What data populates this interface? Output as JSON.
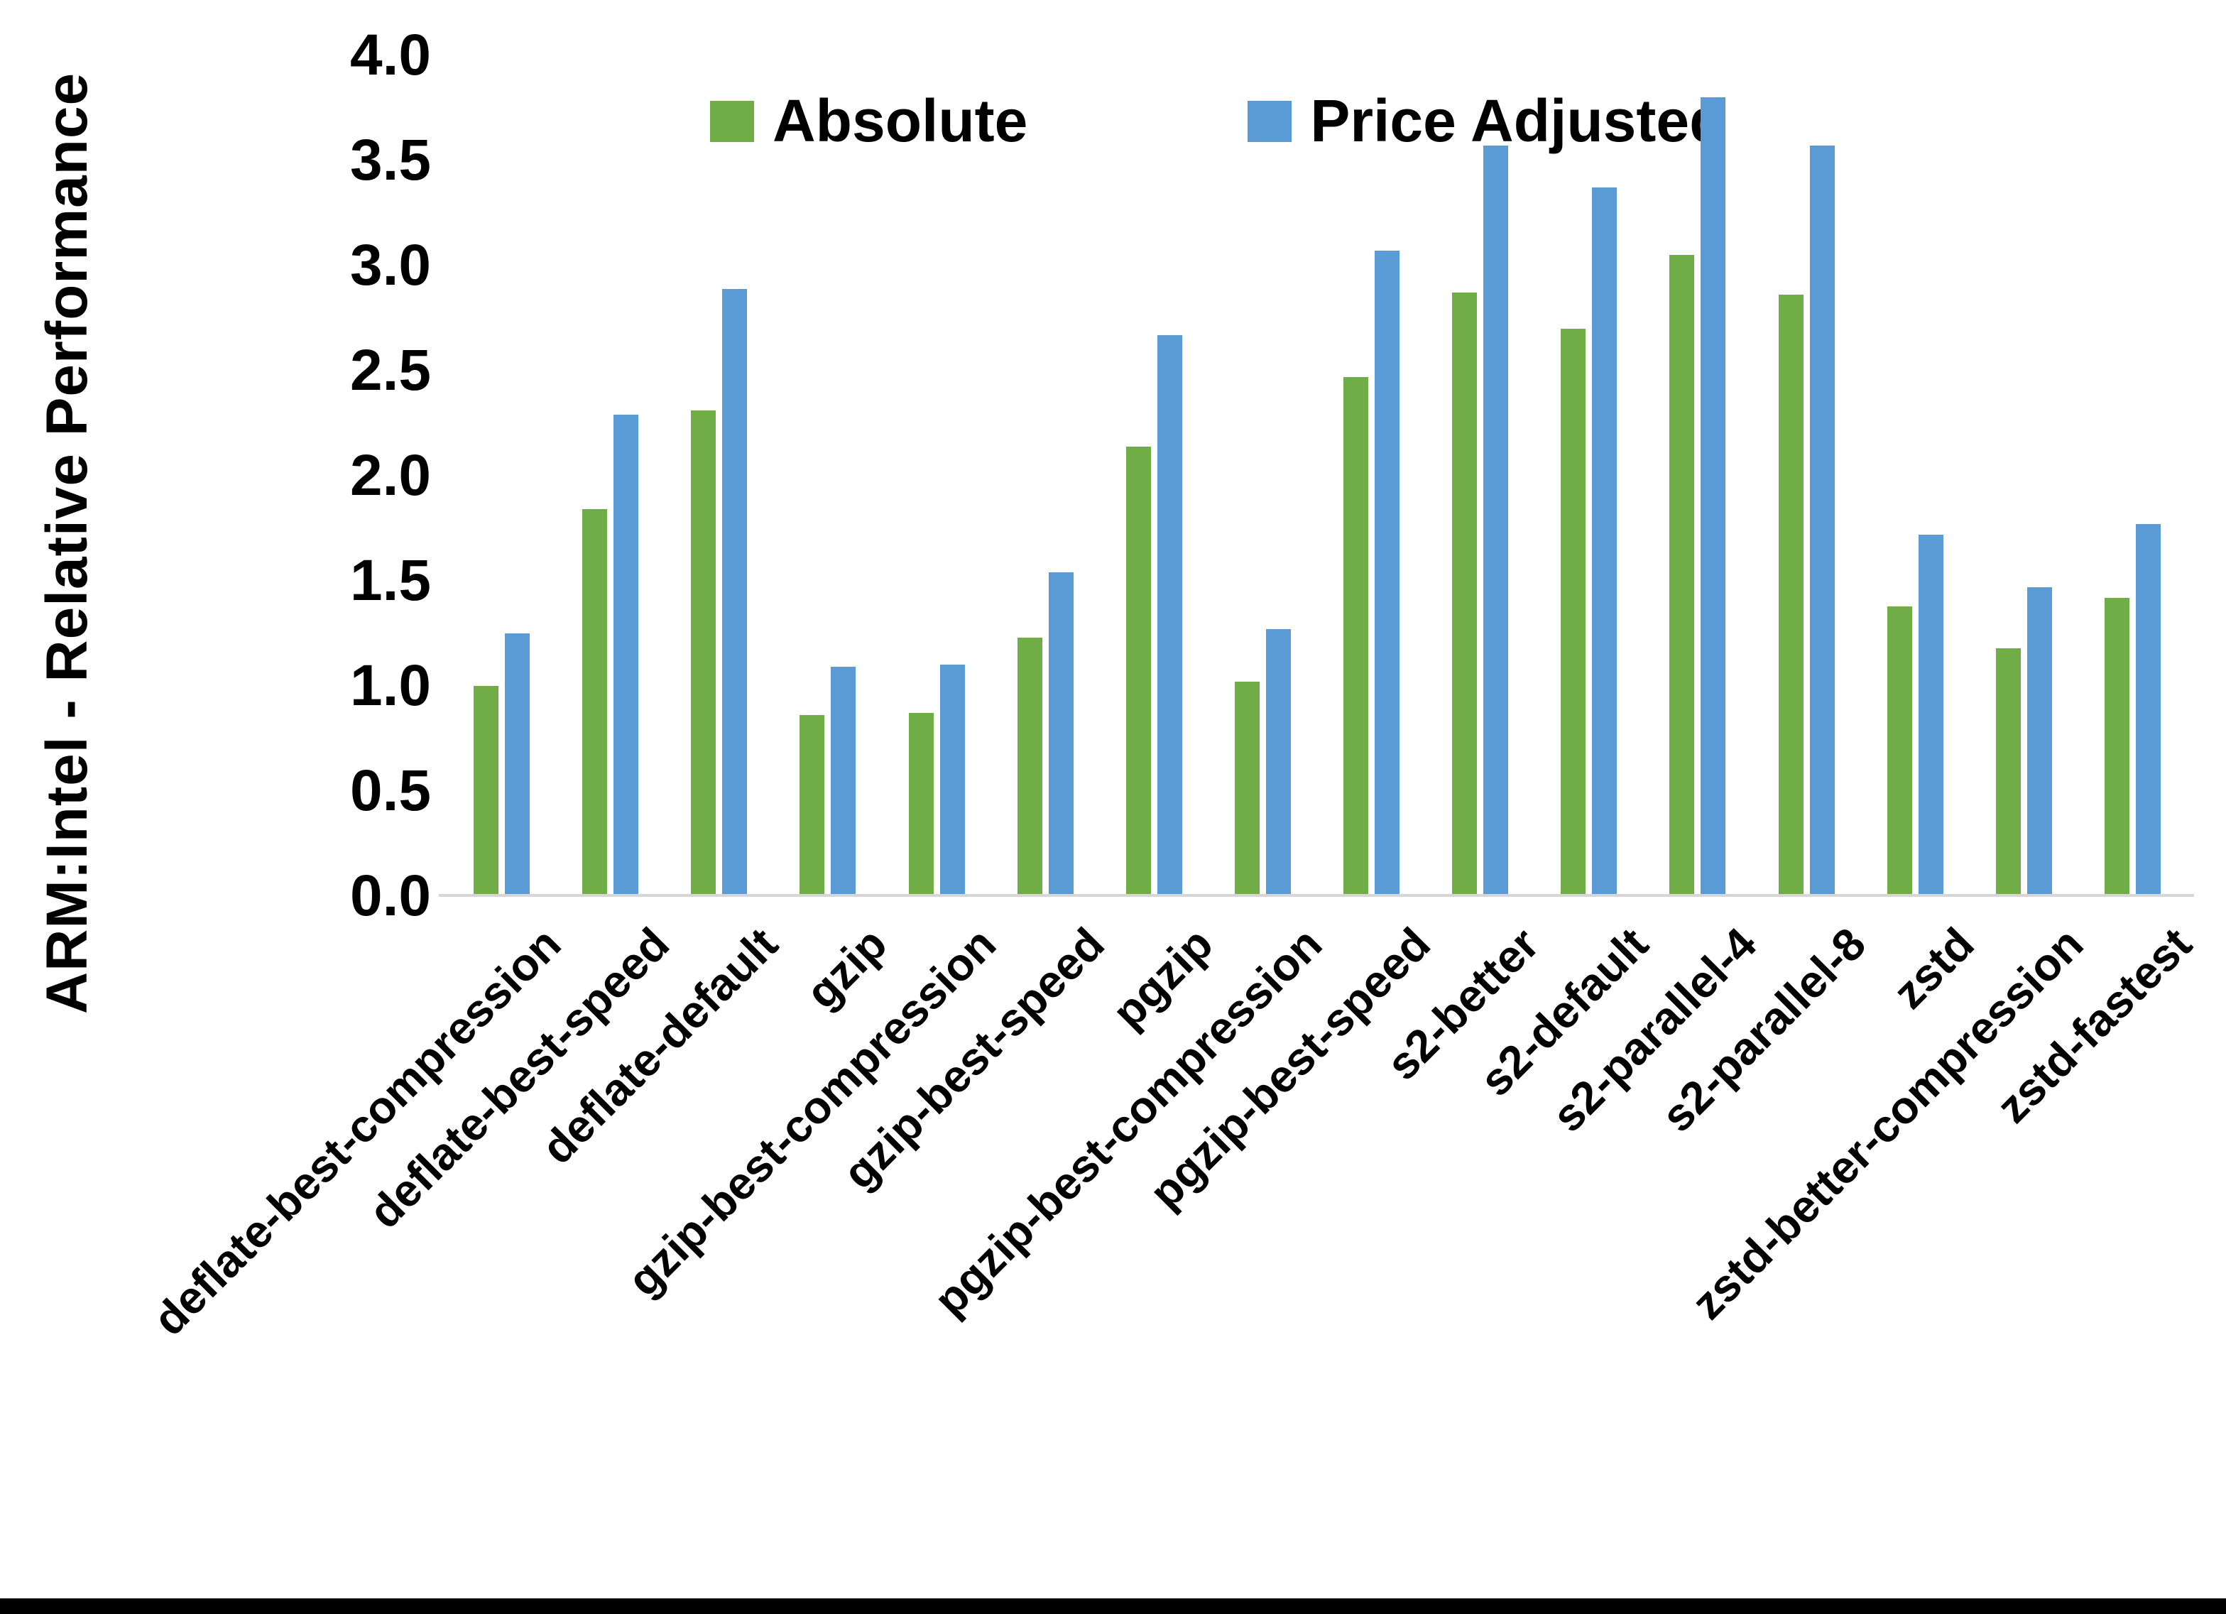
{
  "page": {
    "background": "#ffffff",
    "bottom_bar_color": "#000000"
  },
  "chart_data": {
    "type": "bar",
    "title": "",
    "xlabel": "",
    "ylabel": "ARM:Intel - Relative Performance",
    "ylim": [
      0,
      4
    ],
    "ytick_step": 0.5,
    "ytick_labels": [
      "4.0",
      "3.5",
      "3.0",
      "2.5",
      "2.0",
      "1.5",
      "1.0",
      "0.5",
      "0.0"
    ],
    "grid": false,
    "legend_position": "top-center",
    "axis_line_color": "#d6d6d6",
    "text_color": "#000000",
    "categories": [
      "deflate-best-compression",
      "deflate-best-speed",
      "deflate-default",
      "gzip",
      "gzip-best-compression",
      "gzip-best-speed",
      "pgzip",
      "pgzip-best-compression",
      "pgzip-best-speed",
      "s2-better",
      "s2-default",
      "s2-parallel-4",
      "s2-parallel-8",
      "zstd",
      "zstd-better-compression",
      "zstd-fastest"
    ],
    "series": [
      {
        "name": "Absolute",
        "color": "#70AD47",
        "values": [
          1.0,
          1.84,
          2.31,
          0.86,
          0.87,
          1.23,
          2.14,
          1.02,
          2.47,
          2.87,
          2.7,
          3.05,
          2.86,
          1.38,
          1.18,
          1.42
        ]
      },
      {
        "name": "Price Adjusted",
        "color": "#5B9BD5",
        "values": [
          1.25,
          2.29,
          2.89,
          1.09,
          1.1,
          1.54,
          2.67,
          1.27,
          3.07,
          3.57,
          3.37,
          3.8,
          3.57,
          1.72,
          1.47,
          1.77
        ]
      }
    ]
  }
}
